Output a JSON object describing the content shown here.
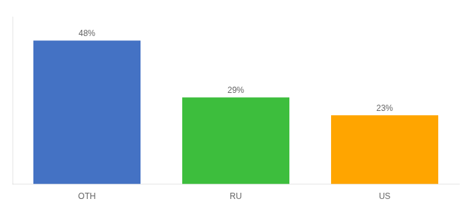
{
  "chart_data": {
    "type": "bar",
    "categories": [
      "OTH",
      "RU",
      "US"
    ],
    "values": [
      48,
      29,
      23
    ],
    "value_labels": [
      "48%",
      "29%",
      "23%"
    ],
    "colors": [
      "#4472C4",
      "#3DBE3D",
      "#FFA500"
    ],
    "ylim": [
      0,
      56
    ],
    "grid": false,
    "tick_labels": "x",
    "data_labels": true
  }
}
